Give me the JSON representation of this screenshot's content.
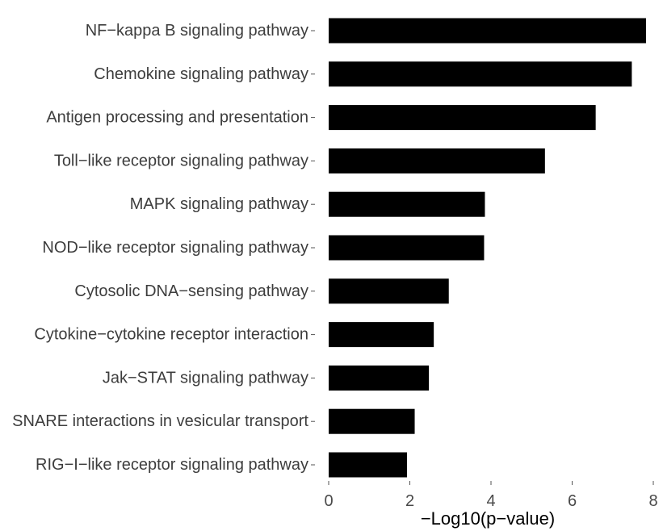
{
  "chart_data": {
    "type": "bar",
    "orientation": "horizontal",
    "categories": [
      "NF−kappa B signaling pathway",
      "Chemokine signaling pathway",
      "Antigen processing and presentation",
      "Toll−like receptor signaling pathway",
      "MAPK signaling pathway",
      "NOD−like receptor signaling pathway",
      "Cytosolic DNA−sensing pathway",
      "Cytokine−cytokine receptor interaction",
      "Jak−STAT signaling pathway",
      "SNARE interactions in vesicular transport",
      "RIG−I−like receptor signaling pathway"
    ],
    "values": [
      7.82,
      7.47,
      6.58,
      5.33,
      3.85,
      3.83,
      2.96,
      2.59,
      2.47,
      2.12,
      1.93
    ],
    "xlabel": "−Log10(p−value)",
    "ylabel": "",
    "title": "",
    "xlim": [
      0,
      8
    ],
    "xticks": [
      0,
      2,
      4,
      6,
      8
    ],
    "grid": false,
    "legend": "none",
    "bar_color": "#000000"
  }
}
